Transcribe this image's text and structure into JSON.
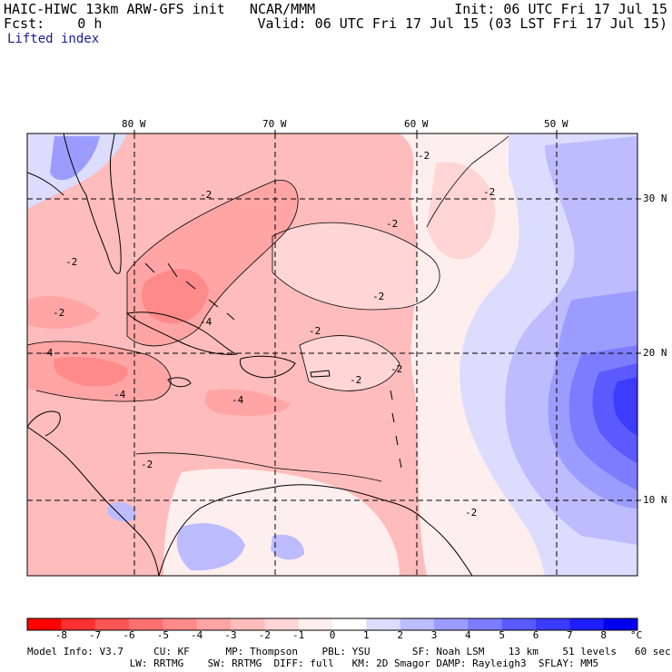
{
  "header": {
    "title": "HAIC-HIWC 13km ARW-GFS init   NCAR/MMM",
    "fcst": "Fcst:    0 h",
    "init": "Init: 06 UTC Fri 17 Jul 15",
    "valid": "Valid: 06 UTC Fri 17 Jul 15 (03 LST Fri 17 Jul 15)",
    "field": "Lifted index"
  },
  "axes": {
    "lon_labels": [
      "80 W",
      "70 W",
      "60 W",
      "50 W"
    ],
    "lat_labels": [
      "30 N",
      "20 N",
      "10 N"
    ]
  },
  "contour_labels": [
    "-2",
    "-4"
  ],
  "colorbar": {
    "labels": [
      "-8",
      "-7",
      "-6",
      "-5",
      "-4",
      "-3",
      "-2",
      "-1",
      "0",
      "1",
      "2",
      "3",
      "4",
      "5",
      "6",
      "7",
      "8"
    ],
    "unit": "°C",
    "colors": [
      "#ff0000",
      "#ff3030",
      "#ff5555",
      "#ff7070",
      "#ff8a8a",
      "#ffa5a5",
      "#ffbcbc",
      "#ffd5d5",
      "#ffeeee",
      "#ffffff",
      "#dcdcff",
      "#bcbcff",
      "#9c9cff",
      "#7c7cff",
      "#5a5aff",
      "#3c3cff",
      "#1e1eff",
      "#0000ee"
    ]
  },
  "footer": {
    "line1": "Model Info: V3.7     CU: KF      MP: Thompson    PBL: YSU       SF: Noah LSM    13 km    51 levels   60 sec",
    "line2": "                 LW: RRTMG    SW: RRTMG  DIFF: full   KM: 2D Smagor DAMP: Rayleigh3  SFLAY: MM5"
  }
}
